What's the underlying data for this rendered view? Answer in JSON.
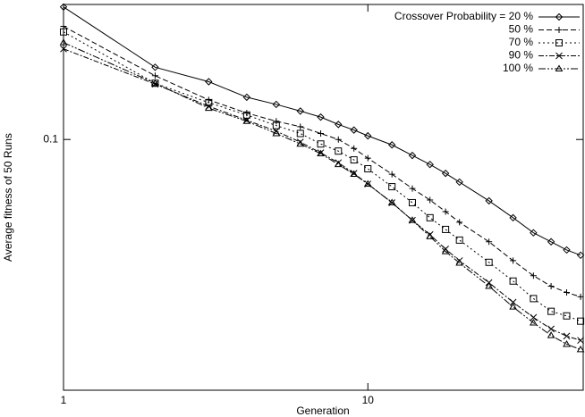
{
  "chart_data": {
    "type": "line",
    "xlabel": "Generation",
    "ylabel": "Average fitness of 50 Runs",
    "xscale": "log",
    "yscale": "log",
    "xlim": [
      1,
      51
    ],
    "ylim": [
      0.013,
      0.3
    ],
    "xticks": [
      1,
      10
    ],
    "yticks": [
      0.1
    ],
    "legend": "upper right",
    "x": [
      1,
      2,
      3,
      4,
      5,
      6,
      7,
      8,
      9,
      10,
      12,
      14,
      16,
      18,
      20,
      25,
      30,
      35,
      40,
      45,
      50
    ],
    "series": [
      {
        "name": "Crossover Probability = 20 %",
        "color": "#000000",
        "marker": "diamond",
        "dash": "none",
        "values": [
          0.294,
          0.18,
          0.16,
          0.141,
          0.133,
          0.126,
          0.12,
          0.113,
          0.108,
          0.103,
          0.0957,
          0.0878,
          0.0816,
          0.0759,
          0.0707,
          0.0607,
          0.0529,
          0.0468,
          0.0435,
          0.0407,
          0.039
        ]
      },
      {
        "name": "50 %",
        "color": "#000000",
        "marker": "plus",
        "dash": "6,3",
        "values": [
          0.251,
          0.168,
          0.138,
          0.124,
          0.116,
          0.111,
          0.105,
          0.1,
          0.093,
          0.0859,
          0.0754,
          0.0671,
          0.0611,
          0.0556,
          0.051,
          0.0435,
          0.0373,
          0.033,
          0.0303,
          0.0288,
          0.0278
        ]
      },
      {
        "name": "70 %",
        "color": "#000000",
        "marker": "square",
        "dash": "2,3",
        "values": [
          0.24,
          0.158,
          0.135,
          0.122,
          0.112,
          0.105,
          0.0964,
          0.091,
          0.0847,
          0.0788,
          0.0681,
          0.0598,
          0.0529,
          0.0481,
          0.0441,
          0.0368,
          0.0316,
          0.0274,
          0.0247,
          0.0238,
          0.0228
        ]
      },
      {
        "name": "90 %",
        "color": "#000000",
        "marker": "cross",
        "dash": "6,2,2,2",
        "values": [
          0.209,
          0.157,
          0.131,
          0.117,
          0.107,
          0.0979,
          0.0897,
          0.0828,
          0.0759,
          0.0696,
          0.0598,
          0.0518,
          0.0461,
          0.041,
          0.0373,
          0.0312,
          0.0266,
          0.0235,
          0.0214,
          0.0202,
          0.0195
        ]
      },
      {
        "name": "100 %",
        "color": "#000000",
        "marker": "triangle",
        "dash": "8,2,2,2,2,2",
        "values": [
          0.22,
          0.158,
          0.129,
          0.116,
          0.105,
          0.0964,
          0.0891,
          0.0816,
          0.0754,
          0.0696,
          0.0598,
          0.0518,
          0.0454,
          0.0402,
          0.0366,
          0.0303,
          0.0256,
          0.0225,
          0.0203,
          0.0189,
          0.0181
        ]
      }
    ]
  }
}
